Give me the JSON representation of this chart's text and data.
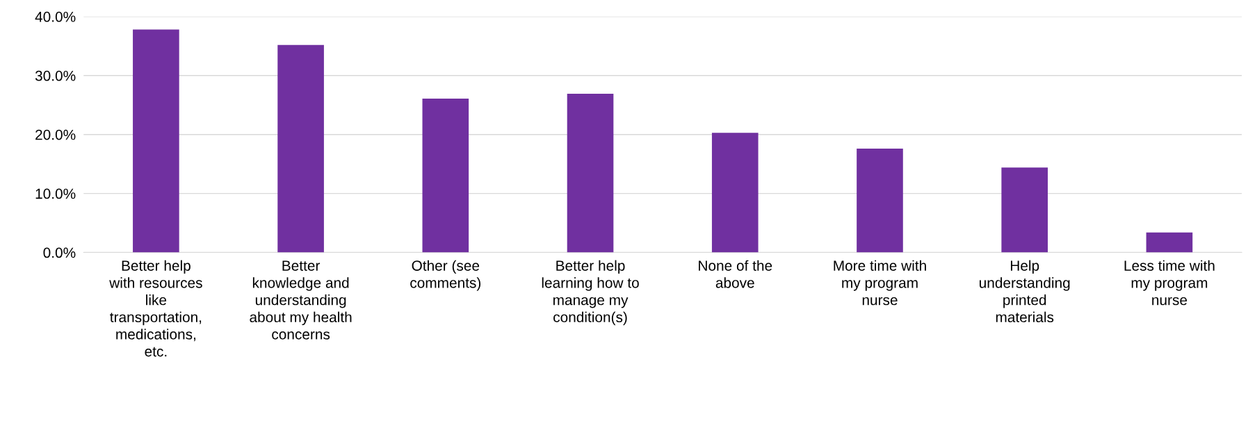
{
  "chart_data": {
    "type": "bar",
    "categories": [
      "Better help with resources like transportation, medications, etc.",
      "Better knowledge and understanding about my health concerns",
      "Other (see comments)",
      "Better help learning how to manage my condition(s)",
      "None of the above",
      "More time with my program nurse",
      "Help understanding printed materials",
      "Less time with my program nurse"
    ],
    "values": [
      37.8,
      35.2,
      26.1,
      26.9,
      20.3,
      17.6,
      14.4,
      3.4
    ],
    "color": "#7030a0",
    "ylim": [
      0,
      40
    ],
    "yticks": [
      {
        "value": 0,
        "label": "0.0%"
      },
      {
        "value": 10,
        "label": "10.0%"
      },
      {
        "value": 20,
        "label": "20.0%"
      },
      {
        "value": 30,
        "label": "30.0%"
      },
      {
        "value": 40,
        "label": "40.0%"
      }
    ],
    "grid": "y",
    "legend": false
  }
}
